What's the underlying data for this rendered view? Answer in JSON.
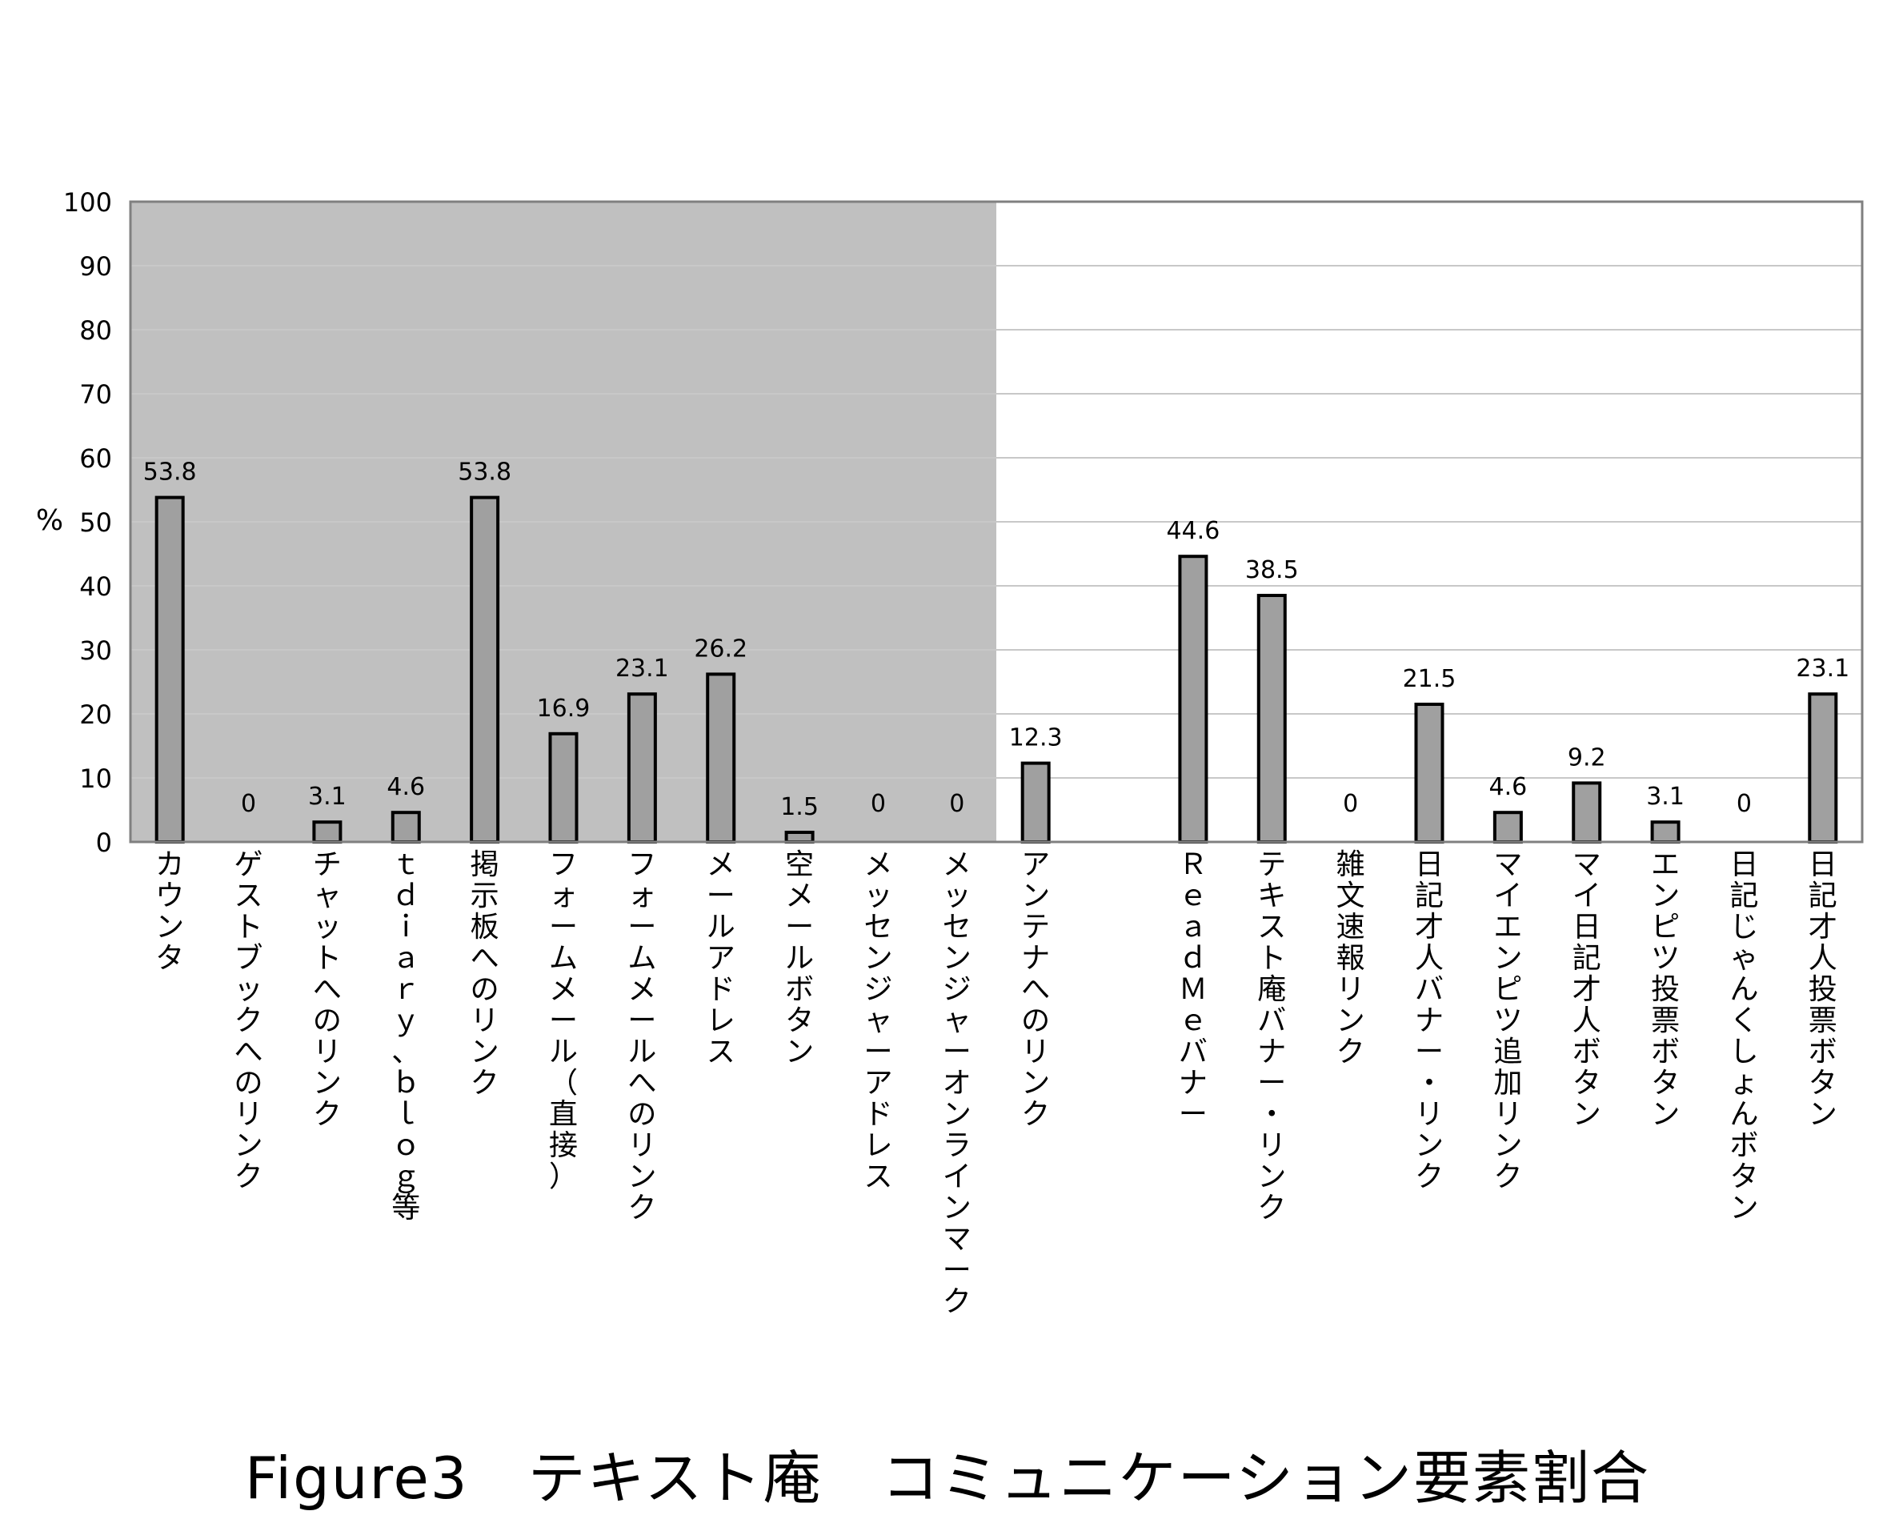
{
  "chart_data": {
    "type": "bar",
    "title": "Figure3　テキスト庵　コミュニケーション要素割合",
    "ylabel": "%",
    "ylim": [
      0,
      100
    ],
    "yticks": [
      0,
      10,
      20,
      30,
      40,
      50,
      60,
      70,
      80,
      90,
      100
    ],
    "grid": true,
    "shaded_region": {
      "from_category": "カウンタ",
      "to_category": "メッセンジャーオンラインマーク",
      "color": "#c0c0c0"
    },
    "colors": {
      "bar_fill": "#a0a0a0",
      "bar_stroke": "#000000",
      "grid": "#c8c8c8"
    },
    "categories": [
      "カウンタ",
      "ゲストブックへのリンク",
      "チャットへのリンク",
      "tdiary、blog等",
      "掲示板へのリンク",
      "フォームメール（直接）",
      "フォームメールへのリンク",
      "メールアドレス",
      "空メールボタン",
      "メッセンジャーアドレス",
      "メッセンジャーオンラインマーク",
      "アンテナへのリンク",
      "",
      "Read Meバナー",
      "テキスト庵バナー・リンク",
      "雑文速報リンク",
      "日記才人バナー・リンク",
      "マイエンピツ追加リンク",
      "マイ日記才人ボタン",
      "エンピツ投票ボタン",
      "日記じゃんくしょんボタン",
      "日記才人投票ボタン"
    ],
    "category_display": [
      "カウンタ",
      "ゲストブックへのリンク",
      "チャットへのリンク",
      "ｔｄｉａｒｙ、ｂｌｏｇ等",
      "掲示板へのリンク",
      "フォームメール（直接）",
      "フォームメールへのリンク",
      "メールアドレス",
      "空メールボタン",
      "メッセンジャーアドレス",
      "メッセンジャーオンラインマーク",
      "アンテナへのリンク",
      "",
      "ＲｅａｄＭｅバナー",
      "テキスト庵バナー・リンク",
      "雑文速報リンク",
      "日記才人バナー・リンク",
      "マイエンピツ追加リンク",
      "マイ日記才人ボタン",
      "エンピツ投票ボタン",
      "日記じゃんくしょんボタン",
      "日記才人投票ボタン"
    ],
    "values": [
      53.8,
      0,
      3.1,
      4.6,
      53.8,
      16.9,
      23.1,
      26.2,
      1.5,
      0,
      0,
      12.3,
      null,
      44.6,
      38.5,
      0,
      21.5,
      4.6,
      9.2,
      3.1,
      0,
      23.1
    ],
    "data_labels": [
      "53.8",
      "0",
      "3.1",
      "4.6",
      "53.8",
      "16.9",
      "23.1",
      "26.2",
      "1.5",
      "0",
      "0",
      "12.3",
      "",
      "44.6",
      "38.5",
      "0",
      "21.5",
      "4.6",
      "9.2",
      "3.1",
      "0",
      "23.1"
    ]
  }
}
